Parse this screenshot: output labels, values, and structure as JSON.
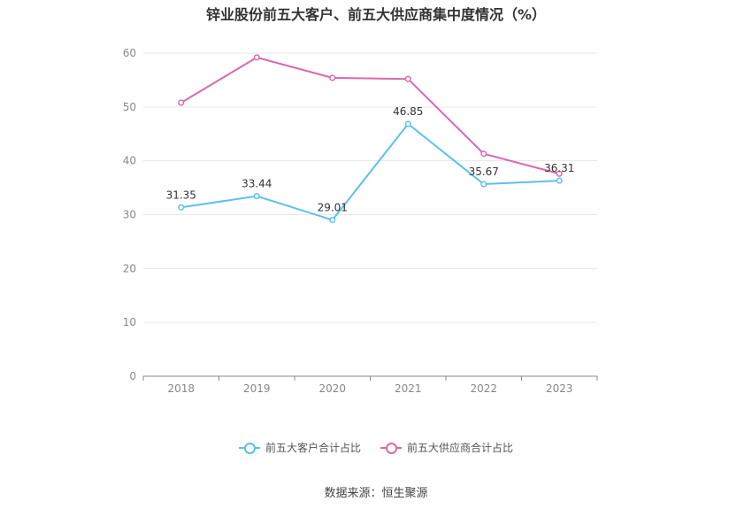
{
  "chart_data": {
    "type": "line",
    "title": "锌业股份前五大客户、前五大供应商集中度情况（%）",
    "categories": [
      "2018",
      "2019",
      "2020",
      "2021",
      "2022",
      "2023"
    ],
    "ylim": [
      0,
      60
    ],
    "yticks": [
      0,
      10,
      20,
      30,
      40,
      50,
      60
    ],
    "grid": true,
    "legend_position": "bottom",
    "series": [
      {
        "name": "前五大客户合计占比",
        "values": [
          31.35,
          33.44,
          29.01,
          46.85,
          35.67,
          36.31
        ],
        "labels": [
          "31.35",
          "33.44",
          "29.01",
          "46.85",
          "35.67",
          "36.31"
        ],
        "color": "#5bc0f0"
      },
      {
        "name": "前五大供应商合计占比",
        "values": [
          50.8,
          59.2,
          55.4,
          55.2,
          41.3,
          37.6
        ],
        "color": "#d76aae"
      }
    ]
  },
  "source": "数据来源：恒生聚源"
}
